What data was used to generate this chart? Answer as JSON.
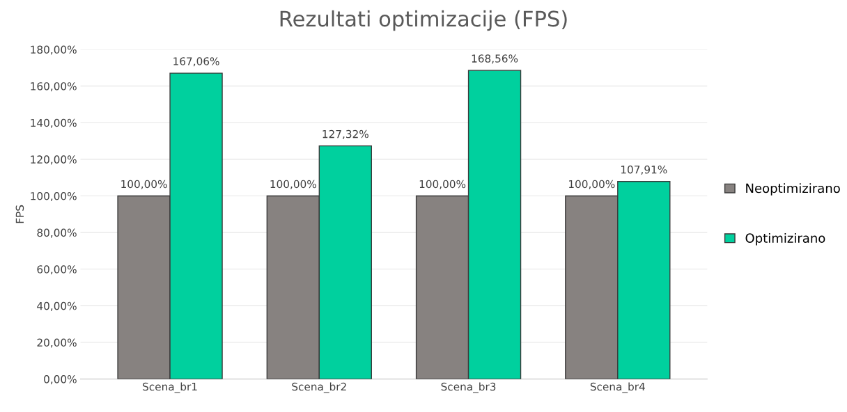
{
  "chart_data": {
    "type": "bar",
    "title": "Rezultati optimizacije (FPS)",
    "ylabel": "FPS",
    "categories": [
      "Scena_br1",
      "Scena_br2",
      "Scena_br3",
      "Scena_br4"
    ],
    "series": [
      {
        "name": "Neoptimizirano",
        "color": "#878280",
        "values": [
          100,
          100,
          100,
          100
        ],
        "value_labels": [
          "100,00%",
          "100,00%",
          "100,00%",
          "100,00%"
        ]
      },
      {
        "name": "Optimizirano",
        "color": "#00d09e",
        "values": [
          167.06,
          127.32,
          168.56,
          107.91
        ],
        "value_labels": [
          "167,06%",
          "127,32%",
          "168,56%",
          "107,91%"
        ]
      }
    ],
    "ylim": [
      0,
      180
    ],
    "yticks": [
      {
        "value": 0,
        "label": "0,00%"
      },
      {
        "value": 20,
        "label": "20,00%"
      },
      {
        "value": 40,
        "label": "40,00%"
      },
      {
        "value": 60,
        "label": "60,00%"
      },
      {
        "value": 80,
        "label": "80,00%"
      },
      {
        "value": 100,
        "label": "100,00%"
      },
      {
        "value": 120,
        "label": "120,00%"
      },
      {
        "value": 140,
        "label": "140,00%"
      },
      {
        "value": 160,
        "label": "160,00%"
      },
      {
        "value": 180,
        "label": "180,00%"
      }
    ],
    "grid": "y",
    "legend": "right"
  }
}
